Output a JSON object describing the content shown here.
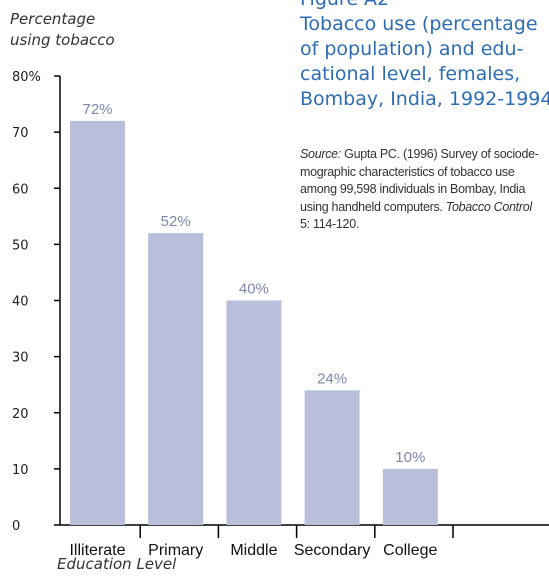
{
  "figure": {
    "label": "Figure A2",
    "title": "Tobacco use (percentage of population) and edu-\ncational level, females,\nBombay, India, 1992-1994",
    "source": {
      "prefix": "Source:",
      "text": " Gupta PC. (1996) Survey of sociode-\nmographic characteristics of tobacco use\namong 99,598 individuals in Bombay, India\nusing handheld computers. ",
      "journal": "Tobacco Control",
      "citation": "\n5: 114-120."
    }
  },
  "colors": {
    "bar": "#b9bfda",
    "data_label": "#7f86ad",
    "axis": "#000000",
    "title": "#2e6db4"
  },
  "chart_data": {
    "type": "bar",
    "categories": [
      "Illiterate",
      "Primary",
      "Middle",
      "Secondary",
      "College"
    ],
    "values": [
      72,
      52,
      40,
      24,
      10
    ],
    "data_labels": [
      "72%",
      "52%",
      "40%",
      "24%",
      "10%"
    ],
    "ylabel": "Percentage\nusing tobacco",
    "xlabel": "Education Level",
    "ylim": [
      0,
      80
    ],
    "y_ticks": [
      0,
      10,
      20,
      30,
      40,
      50,
      60,
      70,
      80
    ],
    "y_tick_labels": [
      "0",
      "10",
      "20",
      "30",
      "40",
      "50",
      "60",
      "70",
      "80%"
    ],
    "grid": false,
    "legend": "none"
  }
}
